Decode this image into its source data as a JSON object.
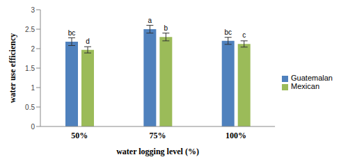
{
  "chart_data": {
    "type": "bar",
    "categories": [
      "50%",
      "75%",
      "100%"
    ],
    "x_label": "water logging level (%)",
    "y_label": "water use efficiency",
    "ylim": [
      0,
      3
    ],
    "yticks": [
      0,
      0.5,
      1,
      1.5,
      2,
      2.5,
      3
    ],
    "grid": false,
    "legend": "right",
    "series": [
      {
        "name": "Guatemalan",
        "color": "#4f81bd",
        "values": [
          2.18,
          2.5,
          2.2
        ],
        "errors": [
          0.1,
          0.1,
          0.09
        ],
        "letters": [
          "bc",
          "a",
          "bc"
        ]
      },
      {
        "name": "Mexican",
        "color": "#9bbb59",
        "values": [
          1.97,
          2.3,
          2.12
        ],
        "errors": [
          0.08,
          0.1,
          0.08
        ],
        "letters": [
          "d",
          "b",
          "c"
        ]
      }
    ]
  }
}
